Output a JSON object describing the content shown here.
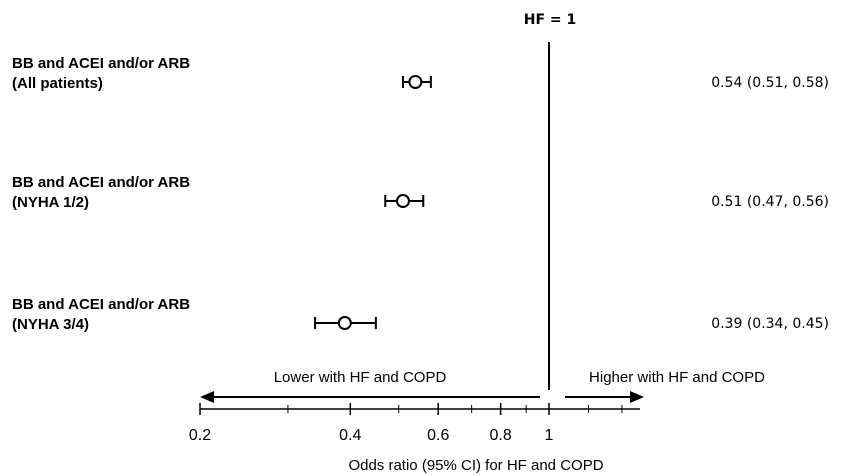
{
  "chart_data": {
    "type": "forest",
    "reference_label": "HF = 1",
    "reference_value": 1,
    "xlabel": "Odds ratio (95% CI) for HF and COPD",
    "x_scale": "log",
    "xlim": [
      0.2,
      1.8
    ],
    "x_ticks": [
      0.2,
      0.4,
      0.6,
      0.8,
      1
    ],
    "x_tick_labels": [
      "0.2",
      "0.4",
      "0.6",
      "0.8",
      "1"
    ],
    "direction_left": "Lower with HF and COPD",
    "direction_right": "Higher with HF and COPD",
    "rows": [
      {
        "label_line1": "BB and ACEI and/or ARB",
        "label_line2": "(All patients)",
        "or": 0.54,
        "ci_low": 0.51,
        "ci_high": 0.58,
        "estimate_text": "0.54 (0.51, 0.58)"
      },
      {
        "label_line1": "BB and ACEI and/or ARB",
        "label_line2": "(NYHA 1/2)",
        "or": 0.51,
        "ci_low": 0.47,
        "ci_high": 0.56,
        "estimate_text": "0.51 (0.47, 0.56)"
      },
      {
        "label_line1": "BB and ACEI and/or ARB",
        "label_line2": "(NYHA 3/4)",
        "or": 0.39,
        "ci_low": 0.34,
        "ci_high": 0.45,
        "estimate_text": "0.39 (0.34, 0.45)"
      }
    ]
  }
}
